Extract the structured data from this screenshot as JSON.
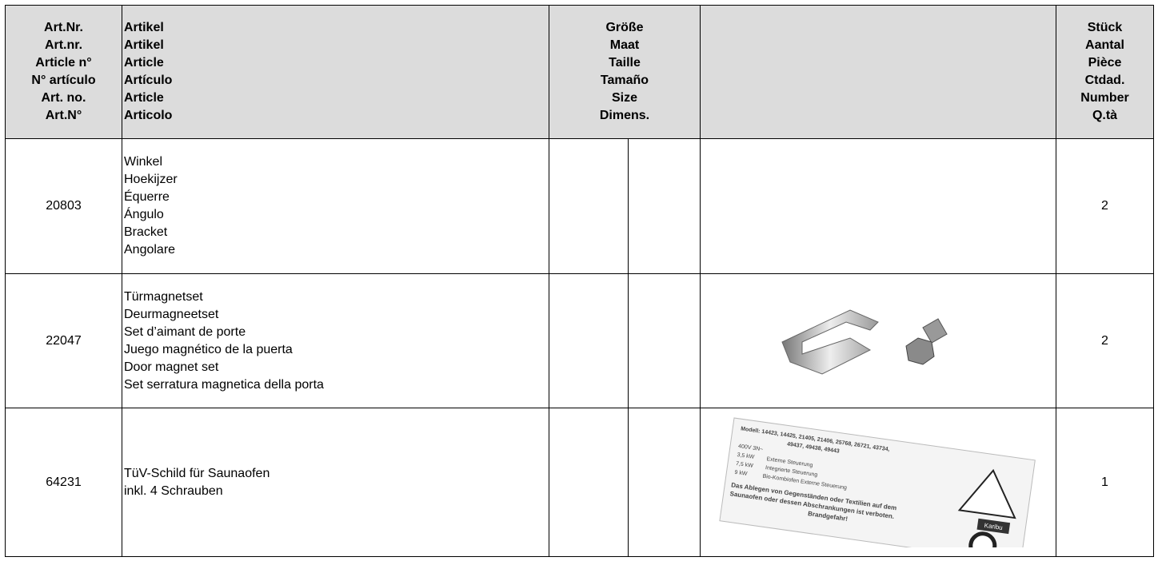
{
  "header": {
    "art_nr": [
      "Art.Nr.",
      "Art.nr.",
      "Article n°",
      "N° artículo",
      "Art. no.",
      "Art.N°"
    ],
    "artikel": [
      "Artikel",
      "Artikel",
      "Article",
      "Artículo",
      "Article",
      "Articolo"
    ],
    "groesse": [
      "Größe",
      "Maat",
      "Taille",
      "Tamaño",
      "Size",
      "Dimens."
    ],
    "stueck": [
      "Stück",
      "Aantal",
      "Pièce",
      "Ctdad.",
      "Number",
      "Q.tà"
    ]
  },
  "rows": [
    {
      "art_nr": "20803",
      "names": [
        "Winkel",
        "Hoekijzer",
        "Équerre",
        "Ángulo",
        "Bracket",
        "Angolare"
      ],
      "qty": "2"
    },
    {
      "art_nr": "22047",
      "names": [
        "Türmagnetset",
        "Deurmagneetset",
        "Set d’aimant de porte",
        "Juego magnético de la puerta",
        "Door magnet set",
        "Set serratura magnetica della porta"
      ],
      "qty": "2"
    },
    {
      "art_nr": "64231",
      "names": [
        "TüV-Schild für Saunaofen",
        "inkl. 4 Schrauben"
      ],
      "qty": "1",
      "plate": {
        "lines": [
          "Modell: 14423, 14425, 21405, 21406, 25768, 26721, 43734,",
          "49437, 49438, 49443",
          "400V 3N~",
          "3,5 kW        Externe Steuerung",
          "7,5 kW        Integrierte Steuerung",
          "9 kW          Bio-Kombiofen Externe Steuerung",
          "Das Ablegen von Gegenständen oder Textilien auf dem",
          "Saunaofen oder dessen Abschrankungen ist verboten.",
          "Brandgefahr!"
        ],
        "brand": "Karibu"
      }
    }
  ]
}
